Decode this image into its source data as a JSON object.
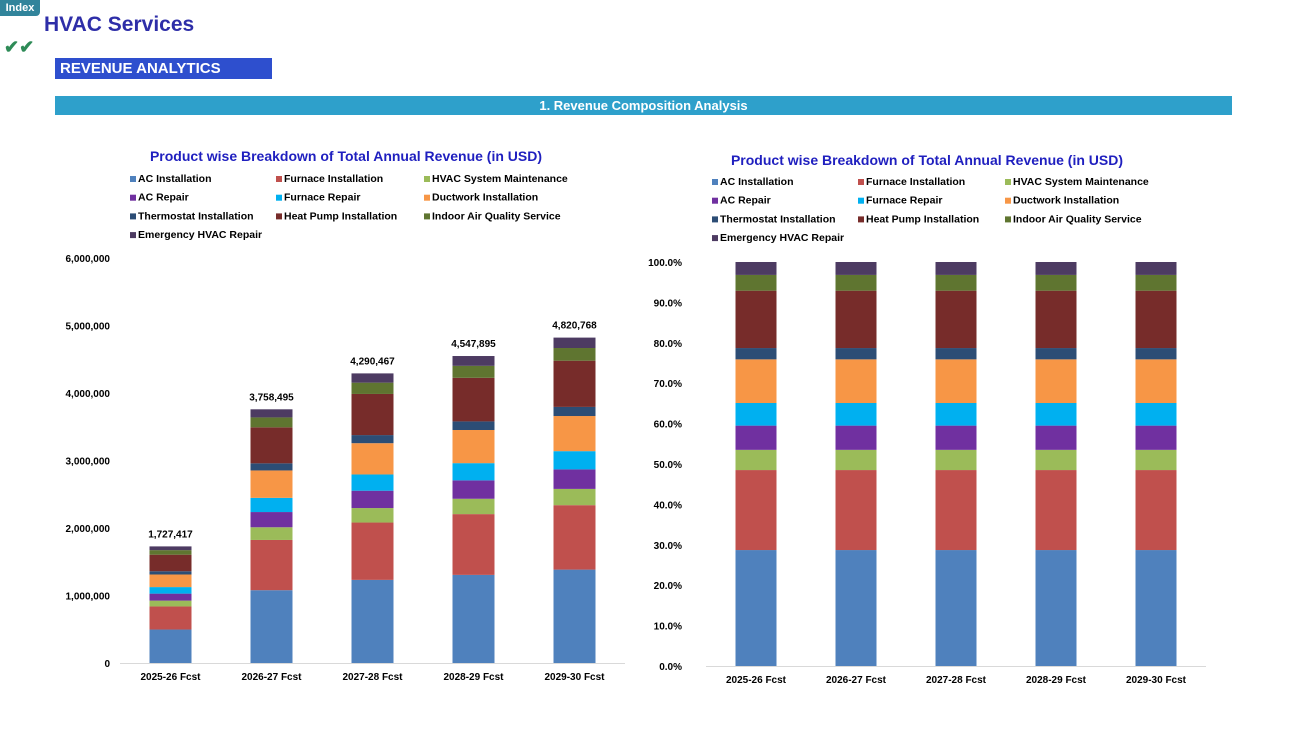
{
  "header": {
    "index_label": "Index",
    "title": "HVAC Services",
    "check_icon": "double-check-icon",
    "section": "REVENUE ANALYTICS",
    "subsection": "1.  Revenue Composition Analysis"
  },
  "chart_data": [
    {
      "type": "bar",
      "stacked": true,
      "title": "Product wise Breakdown of Total Annual Revenue (in USD)",
      "categories": [
        "2025-26 Fcst",
        "2026-27 Fcst",
        "2027-28 Fcst",
        "2028-29 Fcst",
        "2029-30 Fcst"
      ],
      "ylim": [
        0,
        6000000
      ],
      "yticks": [
        "0",
        "1,000,000",
        "2,000,000",
        "3,000,000",
        "4,000,000",
        "5,000,000",
        "6,000,000"
      ],
      "legend": "top",
      "grid": false,
      "totals": [
        "1,727,417",
        "3,758,495",
        "4,290,467",
        "4,547,895",
        "4,820,768"
      ],
      "series": [
        {
          "name": "AC Installation",
          "color": "#4f81bd",
          "values": [
            495769,
            1078688,
            1231364,
            1305246,
            1383560
          ]
        },
        {
          "name": "Furnace Installation",
          "color": "#c0504d",
          "values": [
            342029,
            744182,
            849512,
            900483,
            954512
          ]
        },
        {
          "name": "HVAC System Maintenance",
          "color": "#9bbb59",
          "values": [
            86371,
            187925,
            214523,
            227395,
            241038
          ]
        },
        {
          "name": "AC Repair",
          "color": "#7030a0",
          "values": [
            103645,
            225510,
            257428,
            272874,
            289246
          ]
        },
        {
          "name": "Furnace Repair",
          "color": "#00b0f0",
          "values": [
            96735,
            210476,
            240266,
            254682,
            269963
          ]
        },
        {
          "name": "Ductwork Installation",
          "color": "#f79646",
          "values": [
            186561,
            405917,
            463370,
            491173,
            520643
          ]
        },
        {
          "name": "Thermostat Installation",
          "color": "#2c4d75",
          "values": [
            48368,
            105238,
            120133,
            127341,
            134982
          ]
        },
        {
          "name": "Heat Pump Installation",
          "color": "#772c2a",
          "values": [
            245293,
            533706,
            609246,
            645801,
            684549
          ]
        },
        {
          "name": "Indoor Air Quality Service",
          "color": "#5f7530",
          "values": [
            67369,
            146581,
            167328,
            177368,
            188010
          ]
        },
        {
          "name": "Emergency HVAC Repair",
          "color": "#4d3b62",
          "values": [
            55277,
            120272,
            137295,
            145533,
            154265
          ]
        }
      ]
    },
    {
      "type": "bar",
      "stacked": true,
      "percent": true,
      "title": "Product wise Breakdown of Total Annual Revenue (in USD)",
      "categories": [
        "2025-26 Fcst",
        "2026-27 Fcst",
        "2027-28 Fcst",
        "2028-29 Fcst",
        "2029-30 Fcst"
      ],
      "ylim": [
        0,
        100
      ],
      "yticks": [
        "0.0%",
        "10.0%",
        "20.0%",
        "30.0%",
        "40.0%",
        "50.0%",
        "60.0%",
        "70.0%",
        "80.0%",
        "90.0%",
        "100.0%"
      ],
      "legend": "top",
      "grid": false,
      "series": [
        {
          "name": "AC Installation",
          "color": "#4f81bd",
          "values": [
            28.7,
            28.7,
            28.7,
            28.7,
            28.7
          ]
        },
        {
          "name": "Furnace Installation",
          "color": "#c0504d",
          "values": [
            19.8,
            19.8,
            19.8,
            19.8,
            19.8
          ]
        },
        {
          "name": "HVAC System Maintenance",
          "color": "#9bbb59",
          "values": [
            5.0,
            5.0,
            5.0,
            5.0,
            5.0
          ]
        },
        {
          "name": "AC Repair",
          "color": "#7030a0",
          "values": [
            6.0,
            6.0,
            6.0,
            6.0,
            6.0
          ]
        },
        {
          "name": "Furnace Repair",
          "color": "#00b0f0",
          "values": [
            5.6,
            5.6,
            5.6,
            5.6,
            5.6
          ]
        },
        {
          "name": "Ductwork Installation",
          "color": "#f79646",
          "values": [
            10.8,
            10.8,
            10.8,
            10.8,
            10.8
          ]
        },
        {
          "name": "Thermostat Installation",
          "color": "#2c4d75",
          "values": [
            2.8,
            2.8,
            2.8,
            2.8,
            2.8
          ]
        },
        {
          "name": "Heat Pump Installation",
          "color": "#772c2a",
          "values": [
            14.2,
            14.2,
            14.2,
            14.2,
            14.2
          ]
        },
        {
          "name": "Indoor Air Quality Service",
          "color": "#5f7530",
          "values": [
            3.9,
            3.9,
            3.9,
            3.9,
            3.9
          ]
        },
        {
          "name": "Emergency HVAC Repair",
          "color": "#4d3b62",
          "values": [
            3.2,
            3.2,
            3.2,
            3.2,
            3.2
          ]
        }
      ]
    }
  ]
}
